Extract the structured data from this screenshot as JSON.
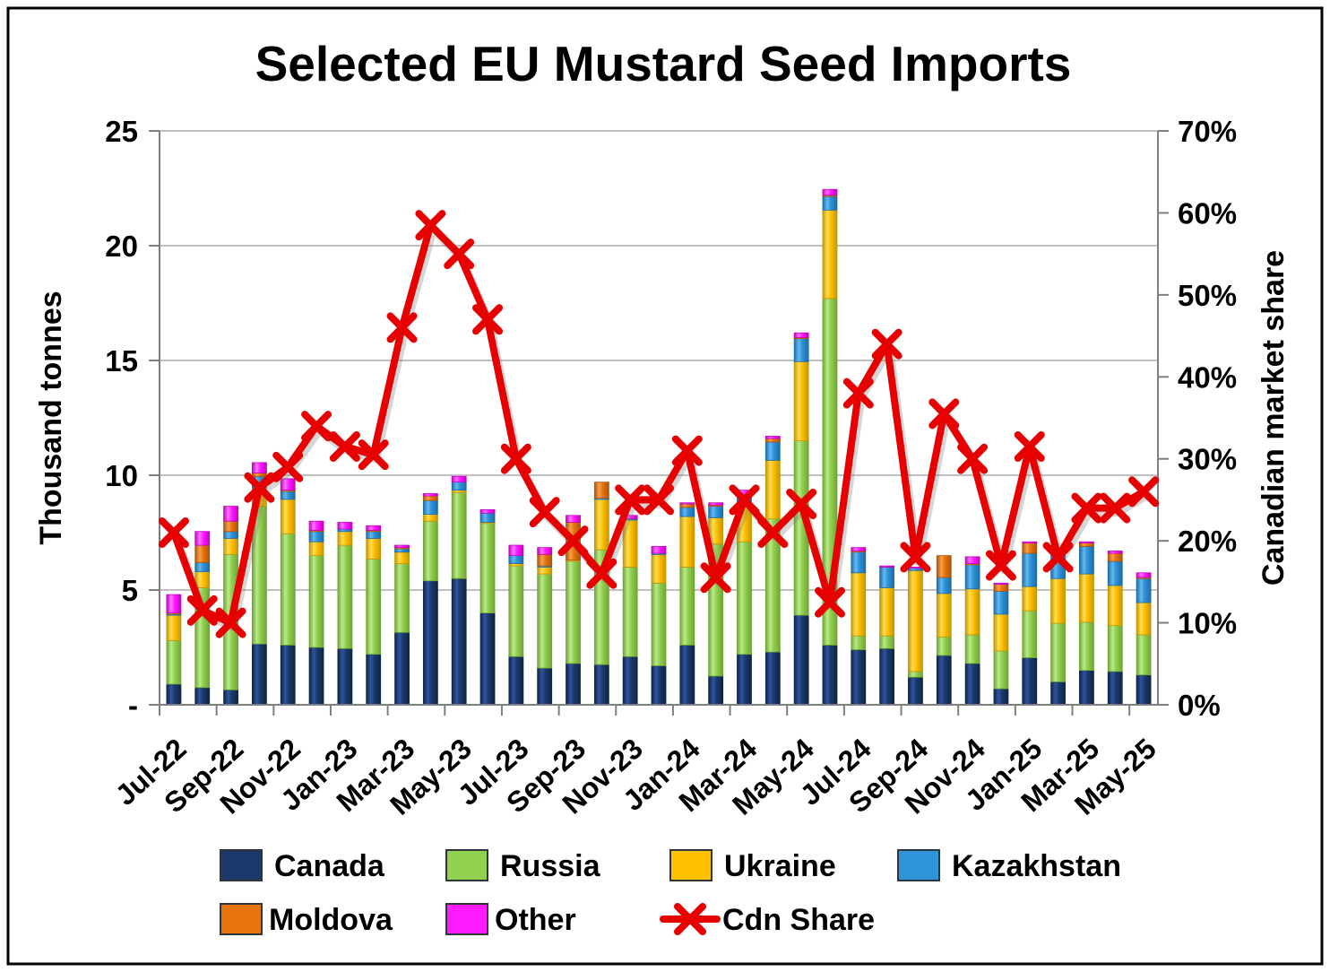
{
  "title": "Selected EU Mustard Seed Imports",
  "y_axis": {
    "label": "Thousand tonnes",
    "ticks": [
      "25",
      "20",
      "15",
      "10",
      "5",
      "-"
    ],
    "tick_values": [
      25,
      20,
      15,
      10,
      5,
      0
    ],
    "min": 0,
    "max": 25
  },
  "y2_axis": {
    "label": "Canadian market share",
    "ticks": [
      "70%",
      "60%",
      "50%",
      "40%",
      "30%",
      "20%",
      "10%",
      "0%"
    ],
    "tick_values": [
      70,
      60,
      50,
      40,
      30,
      20,
      10,
      0
    ],
    "min": 0,
    "max": 70
  },
  "legend": {
    "items": [
      {
        "label": "Canada",
        "color": "#1B3A6B",
        "marker": "square"
      },
      {
        "label": "Russia",
        "color": "#92D050",
        "marker": "square"
      },
      {
        "label": "Ukraine",
        "color": "#FFC000",
        "marker": "square"
      },
      {
        "label": "Kazakhstan",
        "color": "#2E93D9",
        "marker": "square"
      },
      {
        "label": "Moldova",
        "color": "#E8750C",
        "marker": "square"
      },
      {
        "label": "Other",
        "color": "#FF1CFF",
        "marker": "square"
      },
      {
        "label": "Cdn Share",
        "color": "#E60000",
        "marker": "x-line"
      }
    ]
  },
  "chart_data": {
    "type": "bar",
    "subtype": "stacked-bar-with-line",
    "title": "Selected EU Mustard Seed Imports",
    "xlabel": "",
    "ylabel": "Thousand tonnes",
    "y2label": "Canadian market share",
    "ylim": [
      0,
      25
    ],
    "y2lim": [
      0,
      70
    ],
    "grid": true,
    "legend_position": "bottom",
    "categories": [
      "Jul-22",
      "Aug-22",
      "Sep-22",
      "Oct-22",
      "Nov-22",
      "Dec-22",
      "Jan-23",
      "Feb-23",
      "Mar-23",
      "Apr-23",
      "May-23",
      "Jun-23",
      "Jul-23",
      "Aug-23",
      "Sep-23",
      "Oct-23",
      "Nov-23",
      "Dec-23",
      "Jan-24",
      "Feb-24",
      "Mar-24",
      "Apr-24",
      "May-24",
      "Jun-24",
      "Jul-24",
      "Aug-24",
      "Sep-24",
      "Oct-24",
      "Nov-24",
      "Dec-24",
      "Jan-25",
      "Feb-25",
      "Mar-25",
      "Apr-25",
      "May-25"
    ],
    "x_tick_labels": [
      "Jul-22",
      "Sep-22",
      "Nov-22",
      "Jan-23",
      "Mar-23",
      "May-23",
      "Jul-23",
      "Sep-23",
      "Nov-23",
      "Jan-24",
      "Mar-24",
      "May-24",
      "Jul-24",
      "Sep-24",
      "Nov-24",
      "Jan-25",
      "Mar-25",
      "May-25"
    ],
    "series": [
      {
        "name": "Canada",
        "color": "#1B3A6B",
        "light": "#2F54A0",
        "dark": "#0F2547",
        "values": [
          0.9,
          0.75,
          0.65,
          2.65,
          2.6,
          2.5,
          2.45,
          2.2,
          3.15,
          5.4,
          5.5,
          4.0,
          2.1,
          1.6,
          1.8,
          1.75,
          2.1,
          1.7,
          2.6,
          1.25,
          2.2,
          2.3,
          3.9,
          2.6,
          2.4,
          2.45,
          1.2,
          2.15,
          1.8,
          0.7,
          2.05,
          1.0,
          1.5,
          1.45,
          1.3
        ]
      },
      {
        "name": "Russia",
        "color": "#92D050",
        "light": "#BCE98A",
        "dark": "#6FA534",
        "values": [
          1.9,
          4.35,
          5.9,
          6.0,
          4.85,
          4.0,
          4.5,
          4.15,
          3.0,
          2.6,
          3.75,
          3.9,
          3.95,
          4.1,
          4.45,
          5.0,
          3.9,
          3.6,
          3.4,
          5.75,
          4.9,
          5.8,
          7.6,
          15.1,
          0.6,
          0.55,
          0.25,
          0.8,
          1.25,
          1.65,
          2.05,
          2.55,
          2.1,
          2.0,
          1.75
        ]
      },
      {
        "name": "Ukraine",
        "color": "#FFC000",
        "light": "#FFDD55",
        "dark": "#C69500",
        "values": [
          1.1,
          0.7,
          0.7,
          0.8,
          1.5,
          0.6,
          0.6,
          0.9,
          0.5,
          0.3,
          0.1,
          0.05,
          0.1,
          0.3,
          0.05,
          2.2,
          2.05,
          1.25,
          2.2,
          1.15,
          1.55,
          2.55,
          3.45,
          3.85,
          2.75,
          2.1,
          4.4,
          1.9,
          2.0,
          1.6,
          1.05,
          1.95,
          2.1,
          1.75,
          1.4
        ]
      },
      {
        "name": "Kazakhstan",
        "color": "#2E93D9",
        "light": "#66B8EE",
        "dark": "#1C6CA9",
        "values": [
          0.05,
          0.4,
          0.3,
          0.5,
          0.35,
          0.45,
          0.1,
          0.3,
          0.15,
          0.6,
          0.35,
          0.4,
          0.35,
          0.05,
          0.0,
          0.05,
          0.05,
          0.05,
          0.4,
          0.5,
          0.4,
          0.8,
          1.0,
          0.6,
          0.9,
          0.9,
          0.1,
          0.7,
          1.05,
          1.0,
          1.45,
          1.1,
          1.2,
          1.05,
          1.05
        ]
      },
      {
        "name": "Moldova",
        "color": "#E8750C",
        "light": "#F7A24E",
        "dark": "#AE5507",
        "values": [
          0.05,
          0.75,
          0.45,
          0.15,
          0.05,
          0.05,
          0.0,
          0.05,
          0.05,
          0.2,
          0.0,
          0.0,
          0.0,
          0.5,
          1.65,
          0.7,
          0.0,
          0.0,
          0.15,
          0.05,
          0.05,
          0.15,
          0.05,
          0.05,
          0.05,
          0.0,
          0.0,
          0.95,
          0.05,
          0.3,
          0.45,
          0.0,
          0.15,
          0.35,
          0.05
        ]
      },
      {
        "name": "Other",
        "color": "#FF1CFF",
        "light": "#FF77FF",
        "dark": "#C400C4",
        "values": [
          0.8,
          0.6,
          0.65,
          0.45,
          0.5,
          0.4,
          0.3,
          0.2,
          0.1,
          0.1,
          0.25,
          0.15,
          0.45,
          0.3,
          0.3,
          0.0,
          0.15,
          0.3,
          0.05,
          0.1,
          0.25,
          0.1,
          0.2,
          0.25,
          0.15,
          0.05,
          0.05,
          0.0,
          0.3,
          0.05,
          0.05,
          0.1,
          0.05,
          0.1,
          0.2
        ]
      }
    ],
    "line_series": {
      "name": "Cdn Share",
      "color": "#E60000",
      "axis": "right",
      "unit": "%",
      "values": [
        21,
        11.5,
        10,
        26.5,
        29,
        34,
        31.5,
        30.5,
        46,
        58.5,
        55,
        47,
        30,
        23.5,
        20,
        16,
        25,
        25,
        31,
        15.5,
        25,
        21,
        24.5,
        12.5,
        38,
        44,
        18,
        35.5,
        30,
        17,
        31.5,
        18,
        24,
        24,
        26
      ]
    }
  }
}
